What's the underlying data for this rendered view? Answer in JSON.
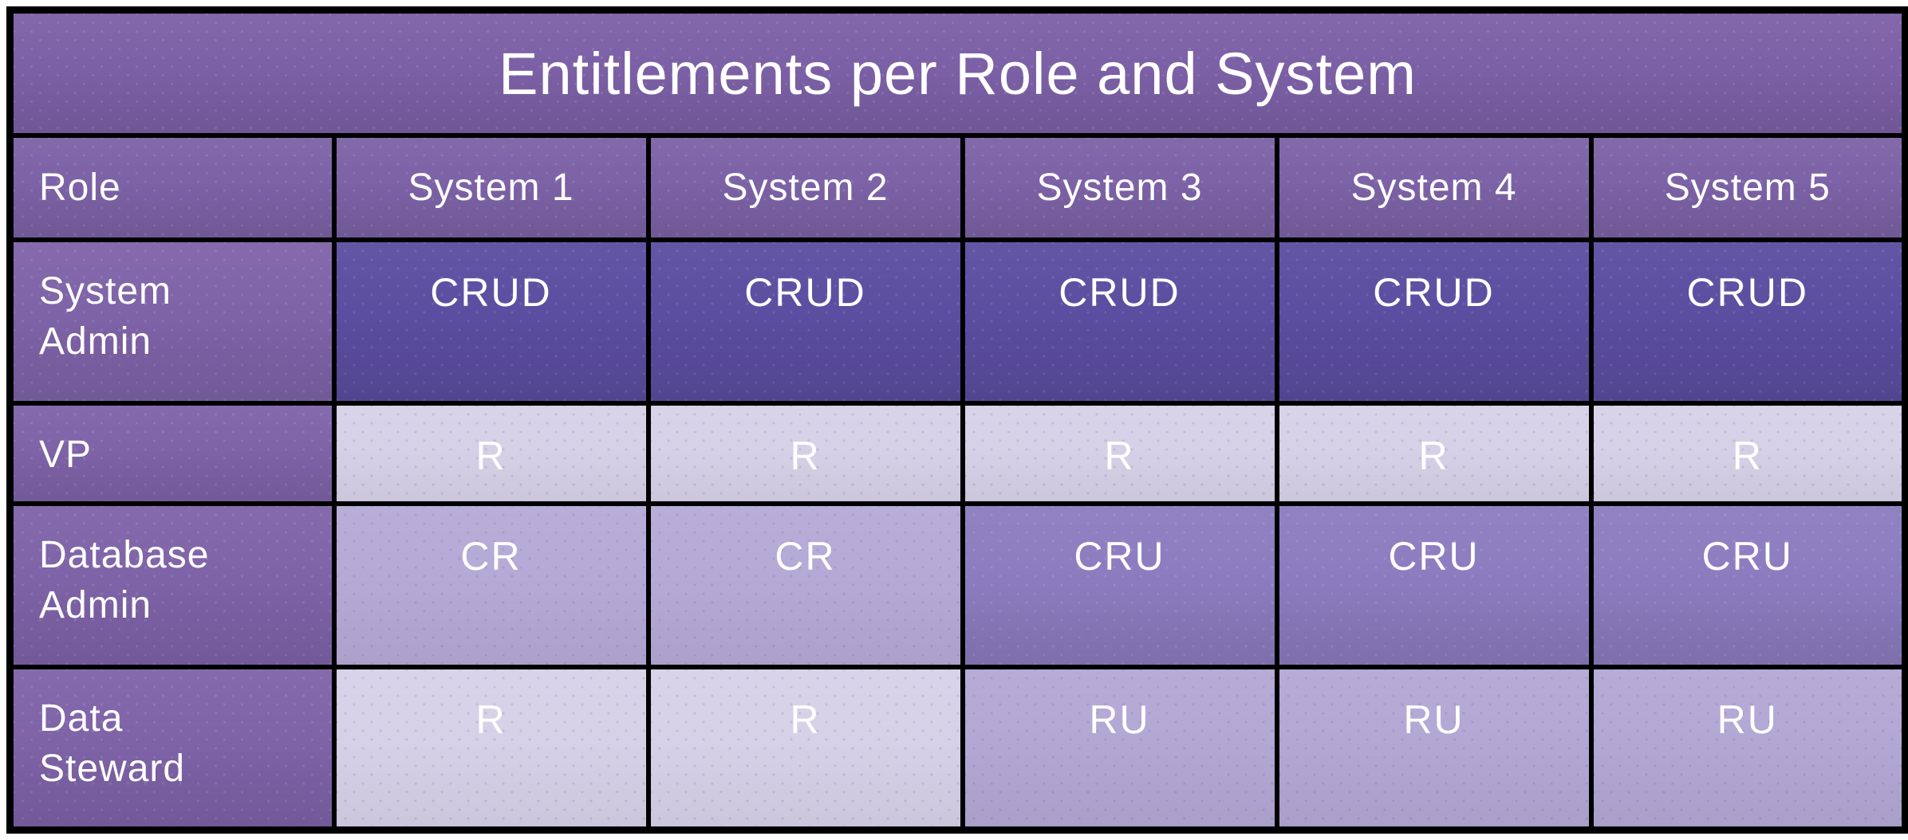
{
  "colors": {
    "page_bg": "#ffffff",
    "border": "#000000",
    "text": "#ffffff",
    "title_bg": "#7c60a6",
    "header_bg": "#7c62a6",
    "role_bg": "#7e63a8",
    "value_bg": {
      "CRUD": "#5b4da0",
      "CRU": "#8b7cbf",
      "CR": "#b4aad6",
      "RU": "#b2a8d4",
      "R": "#d6d1e7"
    }
  },
  "chart_data": {
    "type": "table",
    "title": "Entitlements per Role and System",
    "columns": [
      "Role",
      "System 1",
      "System 2",
      "System 3",
      "System 4",
      "System 5"
    ],
    "rows": [
      {
        "role": "System Admin",
        "values": [
          "CRUD",
          "CRUD",
          "CRUD",
          "CRUD",
          "CRUD"
        ]
      },
      {
        "role": "VP",
        "values": [
          "R",
          "R",
          "R",
          "R",
          "R"
        ]
      },
      {
        "role": "Database Admin",
        "values": [
          "CR",
          "CR",
          "CRU",
          "CRU",
          "CRU"
        ]
      },
      {
        "role": "Data Steward",
        "values": [
          "R",
          "R",
          "RU",
          "RU",
          "RU"
        ]
      }
    ],
    "legend_position": "none",
    "shading_note": "cell background darkens with number of permissions: R lightest, CR/RU light, CRU medium, CRUD darkest"
  }
}
